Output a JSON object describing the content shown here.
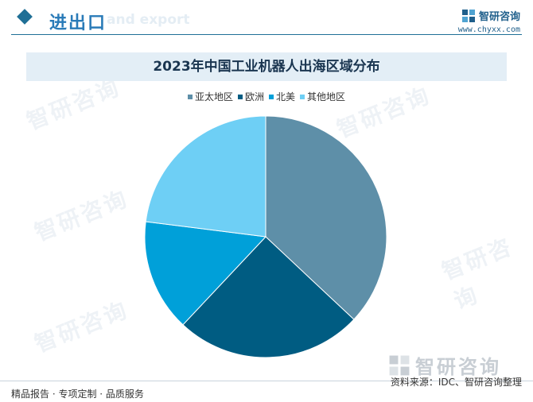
{
  "header": {
    "title": "进出口",
    "subtitle": "and export",
    "brand_name": "智研咨询",
    "brand_url": "www.chyxx.com"
  },
  "watermark": {
    "text": "智研咨询",
    "logo_icon": "chyxx-logo-icon"
  },
  "chart_data": {
    "type": "pie",
    "title": "2023年中国工业机器人出海区域分布",
    "legend_position": "top",
    "start_angle_deg": 0,
    "direction": "clockwise",
    "labels": [
      "亚太地区",
      "欧洲",
      "北美",
      "其他地区"
    ],
    "values": [
      37,
      25,
      15,
      23
    ],
    "unit": "%",
    "colors": [
      "#5e8fa8",
      "#005c82",
      "#00a0d9",
      "#6ecff5"
    ]
  },
  "footer": {
    "left": "精品报告 · 专项定制 · 品质服务",
    "source": "资料来源：IDC、智研咨询整理"
  }
}
